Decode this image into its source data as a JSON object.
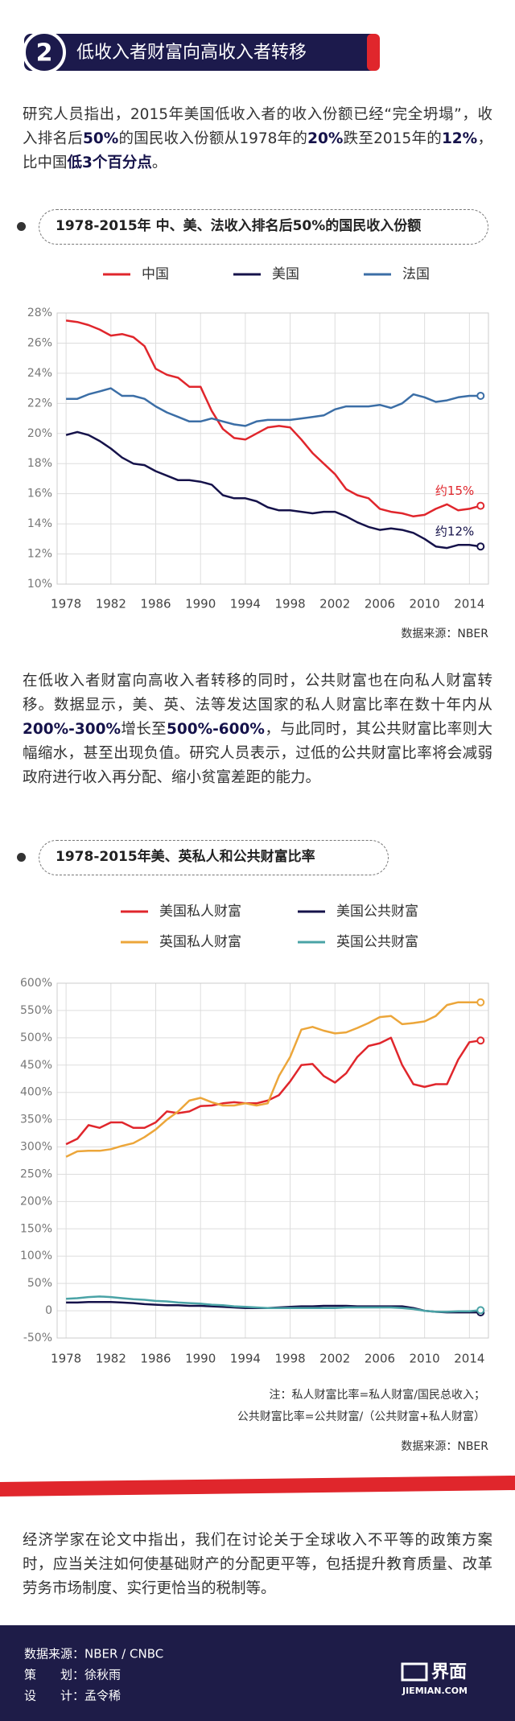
{
  "header": {
    "number": "2",
    "title": "低收入者财富向高收入者转移"
  },
  "paragraphs": [
    [
      {
        "text": "研究人员指出，2015年美国低收入者的收入份额已经“完全坍塌”，收入排名后"
      },
      {
        "text": "50%",
        "strong": true
      },
      {
        "text": "的国民收入份额从1978年的"
      },
      {
        "text": "20%",
        "strong": true
      },
      {
        "text": "跌至2015年的"
      },
      {
        "text": "12%",
        "strong": true
      },
      {
        "text": "，比中国"
      },
      {
        "text": "低3个百分点",
        "strong": true
      },
      {
        "text": "。"
      }
    ],
    [
      {
        "text": "在低收入者财富向高收入者转移的同时，公共财富也在向私人财富转移。数据显示，美、英、法等发达国家的私人财富比率在数十年内从"
      },
      {
        "text": "200%-300%",
        "strong": true
      },
      {
        "text": "增长至"
      },
      {
        "text": "500%-600%",
        "strong": true
      },
      {
        "text": "，与此同时，其公共财富比率则大幅缩水，甚至出现负值。研究人员表示，过低的公共财富比率将会减弱政府进行收入再分配、缩小贫富差距的能力。"
      }
    ],
    [
      {
        "text": "经济学家在论文中指出，我们在讨论关于全球收入不平等的政策方案时，应当关注如何使基础财产的分配更平等，包括提升教育质量、改革劳务市场制度、实行更恰当的税制等。"
      }
    ]
  ],
  "chart_data": [
    {
      "type": "line",
      "title": "1978-2015年 中、美、法收入排名后50%的国民收入份额",
      "x": [
        1978,
        1979,
        1980,
        1981,
        1982,
        1983,
        1984,
        1985,
        1986,
        1987,
        1988,
        1989,
        1990,
        1991,
        1992,
        1993,
        1994,
        1995,
        1996,
        1997,
        1998,
        1999,
        2000,
        2001,
        2002,
        2003,
        2004,
        2005,
        2006,
        2007,
        2008,
        2009,
        2010,
        2011,
        2012,
        2013,
        2014,
        2015
      ],
      "series": [
        {
          "name": "中国",
          "color": "#e0262c",
          "values": [
            27.5,
            27.4,
            27.2,
            26.9,
            26.5,
            26.6,
            26.4,
            25.8,
            24.3,
            23.9,
            23.7,
            23.1,
            23.1,
            21.5,
            20.3,
            19.7,
            19.6,
            20.0,
            20.4,
            20.5,
            20.4,
            19.6,
            18.7,
            18.0,
            17.3,
            16.3,
            15.9,
            15.7,
            15.0,
            14.8,
            14.7,
            14.5,
            14.6,
            15.0,
            15.3,
            14.9,
            15.0,
            15.2
          ]
        },
        {
          "name": "美国",
          "color": "#15124a",
          "values": [
            19.9,
            20.1,
            19.9,
            19.5,
            19.0,
            18.4,
            18.0,
            17.9,
            17.5,
            17.2,
            16.9,
            16.9,
            16.8,
            16.6,
            15.9,
            15.7,
            15.7,
            15.5,
            15.1,
            14.9,
            14.9,
            14.8,
            14.7,
            14.8,
            14.8,
            14.5,
            14.1,
            13.8,
            13.6,
            13.7,
            13.6,
            13.4,
            13.0,
            12.5,
            12.4,
            12.6,
            12.6,
            12.5
          ]
        },
        {
          "name": "法国",
          "color": "#3b6ea6",
          "values": [
            22.3,
            22.3,
            22.6,
            22.8,
            23.0,
            22.5,
            22.5,
            22.3,
            21.8,
            21.4,
            21.1,
            20.8,
            20.8,
            21.0,
            20.8,
            20.6,
            20.5,
            20.8,
            20.9,
            20.9,
            20.9,
            21.0,
            21.1,
            21.2,
            21.6,
            21.8,
            21.8,
            21.8,
            21.9,
            21.7,
            22.0,
            22.6,
            22.4,
            22.1,
            22.2,
            22.4,
            22.5,
            22.5
          ]
        }
      ],
      "annotations": [
        "约15%",
        "约12%"
      ],
      "xlim": [
        1977.2,
        2015.7
      ],
      "xticks": [
        1978,
        1982,
        1986,
        1990,
        1994,
        1998,
        2002,
        2006,
        2010,
        2014
      ],
      "ylim": [
        10,
        28
      ],
      "yticks": [
        {
          "value": 10,
          "label": "10%"
        },
        {
          "value": 12,
          "label": "12%"
        },
        {
          "value": 14,
          "label": "14%"
        },
        {
          "value": 16,
          "label": "16%"
        },
        {
          "value": 18,
          "label": "18%"
        },
        {
          "value": 20,
          "label": "20%"
        },
        {
          "value": 22,
          "label": "22%"
        },
        {
          "value": 24,
          "label": "24%"
        },
        {
          "value": 26,
          "label": "26%"
        },
        {
          "value": 28,
          "label": "28%"
        }
      ],
      "grid": true,
      "source": "数据来源：NBER",
      "notes": []
    },
    {
      "type": "line",
      "title": "1978-2015年美、英私人和公共财富比率",
      "x": [
        1978,
        1979,
        1980,
        1981,
        1982,
        1983,
        1984,
        1985,
        1986,
        1987,
        1988,
        1989,
        1990,
        1991,
        1992,
        1993,
        1994,
        1995,
        1996,
        1997,
        1998,
        1999,
        2000,
        2001,
        2002,
        2003,
        2004,
        2005,
        2006,
        2007,
        2008,
        2009,
        2010,
        2011,
        2012,
        2013,
        2014,
        2015
      ],
      "series": [
        {
          "name": "美国私人财富",
          "color": "#e0262c",
          "values": [
            305,
            315,
            340,
            335,
            345,
            345,
            335,
            335,
            345,
            365,
            362,
            365,
            375,
            376,
            380,
            382,
            380,
            380,
            385,
            395,
            420,
            450,
            452,
            430,
            418,
            435,
            465,
            485,
            490,
            500,
            450,
            415,
            410,
            415,
            415,
            460,
            492,
            495
          ]
        },
        {
          "name": "美国公共财富",
          "color": "#15124a",
          "values": [
            15,
            15,
            16,
            16,
            16,
            15,
            14,
            12,
            11,
            10,
            10,
            9,
            9,
            8,
            7,
            6,
            5,
            5,
            5,
            6,
            7,
            8,
            8,
            9,
            9,
            9,
            8,
            8,
            8,
            8,
            8,
            5,
            0,
            -2,
            -3,
            -3,
            -3,
            -3
          ]
        },
        {
          "name": "英国私人财富",
          "color": "#eca63a",
          "values": [
            282,
            292,
            293,
            293,
            296,
            302,
            307,
            318,
            332,
            350,
            365,
            385,
            390,
            382,
            376,
            376,
            380,
            376,
            380,
            430,
            465,
            515,
            520,
            513,
            508,
            510,
            518,
            527,
            538,
            540,
            525,
            527,
            530,
            540,
            560,
            565,
            565,
            565
          ]
        },
        {
          "name": "英国公共财富",
          "color": "#4aa3a6",
          "values": [
            22,
            23,
            25,
            26,
            25,
            23,
            21,
            20,
            18,
            17,
            15,
            14,
            13,
            11,
            10,
            8,
            7,
            6,
            5,
            5,
            5,
            5,
            5,
            5,
            5,
            6,
            6,
            6,
            6,
            6,
            5,
            3,
            0,
            -2,
            -2,
            -1,
            -1,
            1
          ]
        }
      ],
      "annotations": [],
      "xlim": [
        1977.2,
        2015.7
      ],
      "xticks": [
        1978,
        1982,
        1986,
        1990,
        1994,
        1998,
        2002,
        2006,
        2010,
        2014
      ],
      "ylim": [
        -50,
        600
      ],
      "yticks": [
        {
          "value": -50,
          "label": "-50%"
        },
        {
          "value": 0,
          "label": "0"
        },
        {
          "value": 50,
          "label": "50%"
        },
        {
          "value": 100,
          "label": "100%"
        },
        {
          "value": 150,
          "label": "150%"
        },
        {
          "value": 200,
          "label": "200%"
        },
        {
          "value": 250,
          "label": "250%"
        },
        {
          "value": 300,
          "label": "300%"
        },
        {
          "value": 350,
          "label": "350%"
        },
        {
          "value": 400,
          "label": "400%"
        },
        {
          "value": 450,
          "label": "450%"
        },
        {
          "value": 500,
          "label": "500%"
        },
        {
          "value": 550,
          "label": "550%"
        },
        {
          "value": 600,
          "label": "600%"
        }
      ],
      "grid": true,
      "source": "数据来源：NBER",
      "notes": [
        "注：私人财富比率=私人财富/国民总收入；",
        "公共财富比率=公共财富/（公共财富+私人财富）"
      ]
    }
  ],
  "footer": {
    "lines": [
      "数据来源：NBER / CNBC",
      "策　　划：徐秋雨",
      "设　　计：孟令稀"
    ],
    "logo": "界面",
    "logo_sub": "JIEMIAN.COM"
  }
}
